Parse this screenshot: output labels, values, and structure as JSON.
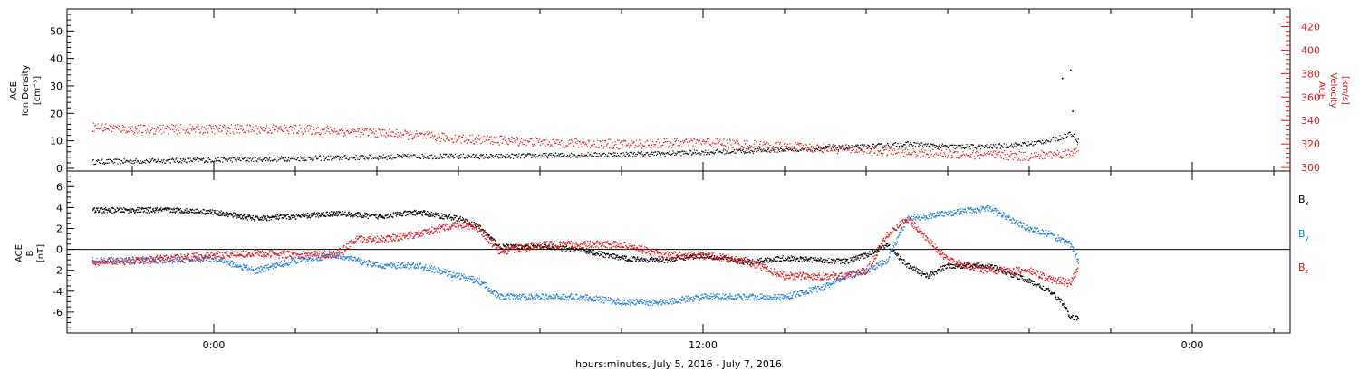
{
  "colors": {
    "black": "#000000",
    "red": "#e8141c",
    "blue": "#1e7fd6",
    "frame": "#000000"
  },
  "footer": {
    "xlabel": "hours:minutes, July  5, 2016 - July  7, 2016"
  },
  "chart_data": [
    {
      "type": "scatter",
      "panel": "top",
      "ylabel_left": [
        "ACE",
        "Ion Density",
        "[cm⁻³]"
      ],
      "ylabel_right": [
        "ACE",
        "Velocity",
        "[km/s]"
      ],
      "ylim_left": [
        -1,
        58
      ],
      "yticks_left": [
        0,
        10,
        20,
        30,
        40,
        50
      ],
      "ytick_labels_left": [
        "0",
        "10",
        "20",
        "30",
        "40",
        "50"
      ],
      "ylim_right": [
        297,
        435
      ],
      "yticks_right": [
        300,
        320,
        340,
        360,
        380,
        400,
        420
      ],
      "ytick_labels_right": [
        "300",
        "320",
        "340",
        "360",
        "380",
        "400",
        "420"
      ],
      "series": [
        {
          "color": "black",
          "axis": "left",
          "scatter": 0.9,
          "x": [
            -3.0,
            -1.0,
            1.0,
            3.0,
            5.0,
            7.0,
            9.0,
            11.0,
            13.0,
            14.0,
            15.0,
            16.0,
            17.0,
            18.0,
            19.0,
            20.0,
            20.7,
            21.0,
            21.2
          ],
          "values": [
            2.5,
            3,
            3.5,
            4,
            4.5,
            4.5,
            5,
            5.5,
            6.5,
            7,
            7.5,
            8,
            9,
            8,
            8,
            9,
            11,
            13,
            10
          ]
        },
        {
          "color": "red",
          "axis": "right",
          "scatter": 4,
          "x": [
            -3.0,
            -2.0,
            0.0,
            2.0,
            4.0,
            6.0,
            8.0,
            10.0,
            12.0,
            14.0,
            15.0,
            16.0,
            17.0,
            18.0,
            19.0,
            20.0,
            21.0,
            21.2
          ],
          "values": [
            335,
            333,
            333,
            333,
            330,
            325,
            322,
            320,
            322,
            318,
            317,
            315,
            313,
            312,
            311,
            310,
            313,
            318
          ]
        }
      ],
      "outliers": [
        {
          "x": 20.8,
          "value": 33,
          "color": "black"
        },
        {
          "x": 21.0,
          "value": 36,
          "color": "black"
        },
        {
          "x": 21.05,
          "value": 21,
          "color": "black"
        }
      ]
    },
    {
      "type": "scatter",
      "panel": "bottom",
      "ylabel_left": [
        "ACE",
        "B",
        "[nT]"
      ],
      "ylim": [
        -8,
        7.5
      ],
      "yticks": [
        -6,
        -4,
        -2,
        0,
        2,
        4,
        6
      ],
      "ytick_labels": [
        "-6",
        "-4",
        "-2",
        "0",
        "2",
        "4",
        "6"
      ],
      "zero_line": true,
      "series": [
        {
          "name": "Bx",
          "color": "black",
          "scatter": 0.25,
          "x": [
            -3.0,
            -1.0,
            0.0,
            1.0,
            2.0,
            3.0,
            4.0,
            5.0,
            6.0,
            6.5,
            7.0,
            8.0,
            9.0,
            10.0,
            11.0,
            12.0,
            13.0,
            14.0,
            15.0,
            15.5,
            16.0,
            16.5,
            17.0,
            17.5,
            18.0,
            19.0,
            20.0,
            20.5,
            20.8,
            21.0,
            21.2
          ],
          "values": [
            3.8,
            3.8,
            3.6,
            3,
            3.2,
            3.5,
            3.2,
            3.6,
            3,
            2.2,
            0.3,
            0.3,
            0,
            -0.8,
            -1,
            -0.5,
            -1.2,
            -0.8,
            -1,
            -1.1,
            -0.5,
            0.5,
            -1.5,
            -2.5,
            -1.5,
            -1.5,
            -3,
            -4,
            -5,
            -6.5,
            -6.5
          ]
        },
        {
          "name": "By",
          "color": "blue",
          "scatter": 0.3,
          "x": [
            -3.0,
            -1.0,
            0.0,
            1.0,
            2.0,
            3.0,
            4.0,
            5.0,
            6.0,
            6.5,
            7.0,
            8.0,
            9.0,
            10.0,
            11.0,
            12.0,
            13.0,
            14.0,
            15.0,
            15.5,
            16.0,
            16.5,
            17.0,
            18.0,
            19.0,
            20.0,
            20.5,
            21.0,
            21.2
          ],
          "values": [
            -1,
            -1,
            -0.8,
            -2,
            -1,
            -0.5,
            -1.5,
            -1.5,
            -2.5,
            -3,
            -4.5,
            -4.5,
            -4.5,
            -5,
            -5,
            -4.5,
            -4.5,
            -4.5,
            -3.5,
            -2.5,
            -2,
            -1,
            3,
            3.5,
            4,
            2,
            1.5,
            0.5,
            -1
          ]
        },
        {
          "name": "Bz",
          "color": "red",
          "scatter": 0.35,
          "x": [
            -3.0,
            -1.0,
            0.0,
            1.0,
            2.0,
            3.0,
            3.5,
            4.0,
            5.0,
            6.0,
            6.5,
            7.0,
            8.0,
            9.0,
            10.0,
            11.0,
            12.0,
            13.0,
            14.0,
            15.0,
            15.5,
            16.0,
            16.5,
            17.0,
            18.0,
            19.0,
            20.0,
            20.5,
            20.8,
            21.0,
            21.2
          ],
          "values": [
            -1.2,
            -0.8,
            -0.5,
            -0.3,
            -0.5,
            -0.4,
            1,
            1,
            1.5,
            2.5,
            2,
            -0.2,
            0.5,
            0.5,
            0.5,
            -0.5,
            -0.5,
            -1,
            -2.5,
            -2.5,
            -2.5,
            -2,
            1.5,
            3,
            -1,
            -2,
            -2,
            -2.8,
            -3,
            -3.2,
            -1.5
          ]
        }
      ],
      "legend": [
        {
          "label": "B",
          "sub": "x",
          "color": "black"
        },
        {
          "label": "B",
          "sub": "y",
          "color": "blue"
        },
        {
          "label": "B",
          "sub": "z",
          "color": "red"
        }
      ]
    }
  ],
  "x_axis": {
    "xlim": [
      -3.6,
      26.4
    ],
    "ticks": [
      0,
      12,
      24
    ],
    "tick_labels": [
      "0:00",
      "12:00",
      "0:00"
    ],
    "minor_step": 2
  }
}
